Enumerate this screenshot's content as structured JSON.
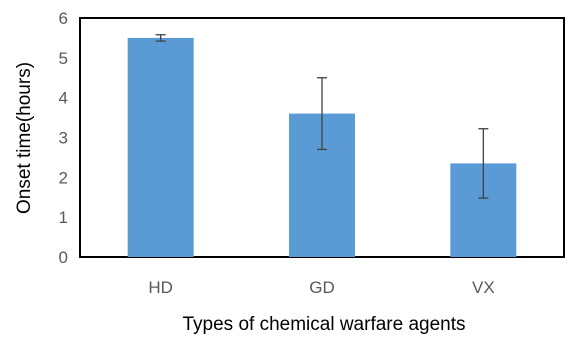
{
  "chart_data": {
    "type": "bar",
    "title": "",
    "categories": [
      "HD",
      "GD",
      "VX"
    ],
    "series": [
      {
        "values": [
          5.5,
          3.6,
          2.35
        ],
        "error": [
          0.08,
          0.9,
          0.87
        ]
      }
    ],
    "xlabel": "Types of chemical warfare agents",
    "ylabel": "Onset time(hours)",
    "ylim": [
      0,
      6
    ],
    "yticks": [
      "0",
      "1",
      "2",
      "3",
      "4",
      "5",
      "6"
    ],
    "grid": false,
    "legend": "none",
    "colors": {
      "bar": "#5b9bd5",
      "error_bar": "#404040",
      "frame": "#000000",
      "tick_text": "#595959"
    }
  }
}
